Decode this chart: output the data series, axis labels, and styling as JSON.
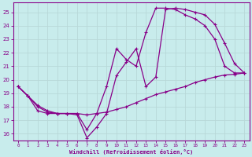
{
  "background_color": "#c8ecec",
  "grid_color": "#aacccc",
  "line_color": "#880088",
  "xlabel": "Windchill (Refroidissement éolien,°C)",
  "xlim": [
    -0.5,
    23.5
  ],
  "ylim": [
    15.5,
    25.7
  ],
  "yticks": [
    16,
    17,
    18,
    19,
    20,
    21,
    22,
    23,
    24,
    25
  ],
  "xticks": [
    0,
    1,
    2,
    3,
    4,
    5,
    6,
    7,
    8,
    9,
    10,
    11,
    12,
    13,
    14,
    15,
    16,
    17,
    18,
    19,
    20,
    21,
    22,
    23
  ],
  "curve1_x": [
    0,
    1,
    2,
    3,
    4,
    5,
    6,
    7,
    8,
    9,
    10,
    11,
    12,
    13,
    14,
    15,
    16,
    17,
    18,
    19,
    20,
    21,
    22,
    23
  ],
  "curve1_y": [
    19.5,
    18.8,
    18.0,
    17.6,
    17.5,
    17.5,
    17.4,
    15.7,
    16.5,
    17.5,
    20.3,
    21.3,
    22.3,
    19.5,
    20.2,
    25.2,
    25.3,
    25.2,
    25.0,
    24.8,
    24.1,
    22.7,
    21.2,
    20.5
  ],
  "curve2_x": [
    0,
    1,
    2,
    3,
    4,
    5,
    6,
    7,
    8,
    9,
    10,
    11,
    12,
    13,
    14,
    15,
    16,
    17,
    18,
    19,
    20,
    21,
    22,
    23
  ],
  "curve2_y": [
    19.5,
    18.8,
    17.7,
    17.5,
    17.5,
    17.5,
    17.5,
    16.3,
    17.5,
    19.5,
    22.3,
    21.5,
    21.0,
    23.5,
    25.3,
    25.3,
    25.2,
    24.8,
    24.5,
    24.0,
    23.0,
    21.0,
    20.5,
    20.5
  ],
  "curve3_x": [
    0,
    1,
    2,
    3,
    4,
    5,
    6,
    7,
    8,
    9,
    10,
    11,
    12,
    13,
    14,
    15,
    16,
    17,
    18,
    19,
    20,
    21,
    22,
    23
  ],
  "curve3_y": [
    19.5,
    18.8,
    18.1,
    17.7,
    17.5,
    17.5,
    17.5,
    17.4,
    17.5,
    17.6,
    17.8,
    18.0,
    18.3,
    18.6,
    18.9,
    19.1,
    19.3,
    19.5,
    19.8,
    20.0,
    20.2,
    20.35,
    20.4,
    20.5
  ]
}
